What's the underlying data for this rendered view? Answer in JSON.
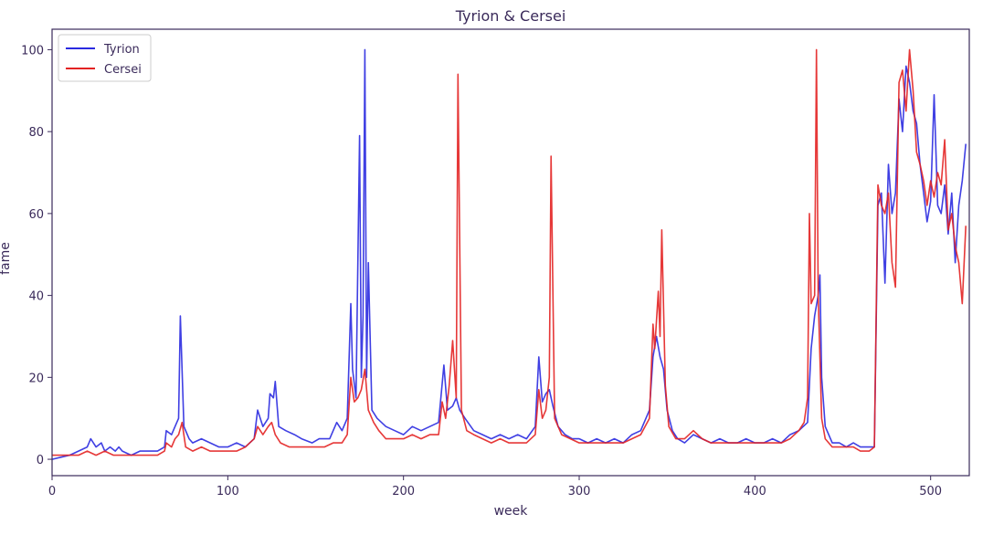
{
  "chart_data": {
    "type": "line",
    "title": "Tyrion & Cersei",
    "xlabel": "week",
    "ylabel": "fame",
    "xlim": [
      0,
      522
    ],
    "ylim": [
      -4,
      105
    ],
    "xticks": [
      0,
      100,
      200,
      300,
      400,
      500
    ],
    "yticks": [
      0,
      20,
      40,
      60,
      80,
      100
    ],
    "grid": false,
    "legend_position": "top-left",
    "colors": {
      "frame": "#3a2a5a",
      "text": "#3a2a5a"
    },
    "series": [
      {
        "name": "Tyrion",
        "color": "#2a2ae0",
        "points": [
          [
            0,
            0
          ],
          [
            5,
            0.5
          ],
          [
            10,
            1
          ],
          [
            15,
            2
          ],
          [
            20,
            3
          ],
          [
            22,
            5
          ],
          [
            25,
            3
          ],
          [
            28,
            4
          ],
          [
            30,
            2
          ],
          [
            33,
            3
          ],
          [
            36,
            2
          ],
          [
            38,
            3
          ],
          [
            40,
            2
          ],
          [
            45,
            1
          ],
          [
            50,
            2
          ],
          [
            55,
            2
          ],
          [
            60,
            2
          ],
          [
            64,
            3
          ],
          [
            65,
            7
          ],
          [
            68,
            6
          ],
          [
            70,
            8
          ],
          [
            72,
            10
          ],
          [
            73,
            35
          ],
          [
            75,
            8
          ],
          [
            78,
            5
          ],
          [
            80,
            4
          ],
          [
            85,
            5
          ],
          [
            90,
            4
          ],
          [
            95,
            3
          ],
          [
            100,
            3
          ],
          [
            105,
            4
          ],
          [
            110,
            3
          ],
          [
            115,
            5
          ],
          [
            117,
            12
          ],
          [
            120,
            8
          ],
          [
            123,
            10
          ],
          [
            124,
            16
          ],
          [
            126,
            15
          ],
          [
            127,
            19
          ],
          [
            129,
            8
          ],
          [
            133,
            7
          ],
          [
            138,
            6
          ],
          [
            142,
            5
          ],
          [
            148,
            4
          ],
          [
            152,
            5
          ],
          [
            158,
            5
          ],
          [
            160,
            7
          ],
          [
            162,
            9
          ],
          [
            165,
            7
          ],
          [
            168,
            10
          ],
          [
            170,
            38
          ],
          [
            171,
            22
          ],
          [
            173,
            15
          ],
          [
            175,
            79
          ],
          [
            176,
            20
          ],
          [
            177,
            35
          ],
          [
            178,
            100
          ],
          [
            179,
            20
          ],
          [
            180,
            48
          ],
          [
            182,
            12
          ],
          [
            185,
            10
          ],
          [
            190,
            8
          ],
          [
            195,
            7
          ],
          [
            200,
            6
          ],
          [
            205,
            8
          ],
          [
            210,
            7
          ],
          [
            215,
            8
          ],
          [
            220,
            9
          ],
          [
            223,
            23
          ],
          [
            225,
            12
          ],
          [
            228,
            13
          ],
          [
            230,
            15
          ],
          [
            232,
            12
          ],
          [
            235,
            10
          ],
          [
            240,
            7
          ],
          [
            245,
            6
          ],
          [
            250,
            5
          ],
          [
            255,
            6
          ],
          [
            260,
            5
          ],
          [
            265,
            6
          ],
          [
            270,
            5
          ],
          [
            275,
            8
          ],
          [
            277,
            25
          ],
          [
            279,
            14
          ],
          [
            281,
            16
          ],
          [
            283,
            17
          ],
          [
            285,
            13
          ],
          [
            288,
            8
          ],
          [
            292,
            6
          ],
          [
            296,
            5
          ],
          [
            300,
            5
          ],
          [
            305,
            4
          ],
          [
            310,
            5
          ],
          [
            315,
            4
          ],
          [
            320,
            5
          ],
          [
            325,
            4
          ],
          [
            330,
            6
          ],
          [
            335,
            7
          ],
          [
            340,
            12
          ],
          [
            342,
            25
          ],
          [
            344,
            30
          ],
          [
            346,
            25
          ],
          [
            348,
            22
          ],
          [
            350,
            12
          ],
          [
            353,
            7
          ],
          [
            356,
            5
          ],
          [
            360,
            4
          ],
          [
            365,
            6
          ],
          [
            370,
            5
          ],
          [
            375,
            4
          ],
          [
            380,
            5
          ],
          [
            385,
            4
          ],
          [
            390,
            4
          ],
          [
            395,
            5
          ],
          [
            400,
            4
          ],
          [
            405,
            4
          ],
          [
            410,
            5
          ],
          [
            415,
            4
          ],
          [
            420,
            6
          ],
          [
            425,
            7
          ],
          [
            430,
            9
          ],
          [
            432,
            27
          ],
          [
            434,
            35
          ],
          [
            436,
            40
          ],
          [
            437,
            45
          ],
          [
            438,
            20
          ],
          [
            440,
            8
          ],
          [
            444,
            4
          ],
          [
            448,
            4
          ],
          [
            452,
            3
          ],
          [
            456,
            4
          ],
          [
            460,
            3
          ],
          [
            465,
            3
          ],
          [
            468,
            3
          ],
          [
            470,
            62
          ],
          [
            472,
            65
          ],
          [
            474,
            43
          ],
          [
            476,
            72
          ],
          [
            478,
            60
          ],
          [
            480,
            65
          ],
          [
            482,
            88
          ],
          [
            484,
            80
          ],
          [
            486,
            96
          ],
          [
            488,
            92
          ],
          [
            490,
            85
          ],
          [
            492,
            82
          ],
          [
            494,
            72
          ],
          [
            496,
            65
          ],
          [
            498,
            58
          ],
          [
            500,
            63
          ],
          [
            502,
            89
          ],
          [
            504,
            62
          ],
          [
            506,
            60
          ],
          [
            508,
            67
          ],
          [
            510,
            55
          ],
          [
            512,
            65
          ],
          [
            514,
            48
          ],
          [
            516,
            62
          ],
          [
            518,
            68
          ],
          [
            520,
            77
          ]
        ]
      },
      {
        "name": "Cersei",
        "color": "#e32222",
        "points": [
          [
            0,
            1
          ],
          [
            5,
            1
          ],
          [
            10,
            1
          ],
          [
            15,
            1
          ],
          [
            20,
            2
          ],
          [
            25,
            1
          ],
          [
            30,
            2
          ],
          [
            35,
            1
          ],
          [
            40,
            1
          ],
          [
            45,
            1
          ],
          [
            50,
            1
          ],
          [
            55,
            1
          ],
          [
            60,
            1
          ],
          [
            64,
            2
          ],
          [
            65,
            4
          ],
          [
            68,
            3
          ],
          [
            70,
            5
          ],
          [
            72,
            6
          ],
          [
            74,
            9
          ],
          [
            76,
            3
          ],
          [
            80,
            2
          ],
          [
            85,
            3
          ],
          [
            90,
            2
          ],
          [
            95,
            2
          ],
          [
            100,
            2
          ],
          [
            105,
            2
          ],
          [
            110,
            3
          ],
          [
            115,
            5
          ],
          [
            117,
            8
          ],
          [
            120,
            6
          ],
          [
            123,
            8
          ],
          [
            125,
            9
          ],
          [
            127,
            6
          ],
          [
            130,
            4
          ],
          [
            135,
            3
          ],
          [
            140,
            3
          ],
          [
            145,
            3
          ],
          [
            150,
            3
          ],
          [
            155,
            3
          ],
          [
            160,
            4
          ],
          [
            165,
            4
          ],
          [
            168,
            6
          ],
          [
            170,
            20
          ],
          [
            172,
            14
          ],
          [
            174,
            15
          ],
          [
            176,
            17
          ],
          [
            178,
            22
          ],
          [
            180,
            12
          ],
          [
            183,
            9
          ],
          [
            186,
            7
          ],
          [
            190,
            5
          ],
          [
            195,
            5
          ],
          [
            200,
            5
          ],
          [
            205,
            6
          ],
          [
            210,
            5
          ],
          [
            215,
            6
          ],
          [
            220,
            6
          ],
          [
            222,
            14
          ],
          [
            224,
            10
          ],
          [
            226,
            18
          ],
          [
            228,
            29
          ],
          [
            230,
            15
          ],
          [
            231,
            94
          ],
          [
            233,
            12
          ],
          [
            236,
            7
          ],
          [
            240,
            6
          ],
          [
            245,
            5
          ],
          [
            250,
            4
          ],
          [
            255,
            5
          ],
          [
            260,
            4
          ],
          [
            265,
            4
          ],
          [
            270,
            4
          ],
          [
            275,
            6
          ],
          [
            277,
            17
          ],
          [
            279,
            10
          ],
          [
            281,
            12
          ],
          [
            283,
            20
          ],
          [
            284,
            74
          ],
          [
            286,
            10
          ],
          [
            290,
            6
          ],
          [
            295,
            5
          ],
          [
            300,
            4
          ],
          [
            305,
            4
          ],
          [
            310,
            4
          ],
          [
            315,
            4
          ],
          [
            320,
            4
          ],
          [
            325,
            4
          ],
          [
            330,
            5
          ],
          [
            335,
            6
          ],
          [
            340,
            10
          ],
          [
            342,
            33
          ],
          [
            343,
            27
          ],
          [
            345,
            41
          ],
          [
            346,
            30
          ],
          [
            347,
            56
          ],
          [
            349,
            18
          ],
          [
            351,
            8
          ],
          [
            355,
            5
          ],
          [
            360,
            5
          ],
          [
            365,
            7
          ],
          [
            370,
            5
          ],
          [
            375,
            4
          ],
          [
            380,
            4
          ],
          [
            385,
            4
          ],
          [
            390,
            4
          ],
          [
            395,
            4
          ],
          [
            400,
            4
          ],
          [
            405,
            4
          ],
          [
            410,
            4
          ],
          [
            415,
            4
          ],
          [
            420,
            5
          ],
          [
            425,
            7
          ],
          [
            428,
            9
          ],
          [
            430,
            15
          ],
          [
            431,
            60
          ],
          [
            432,
            38
          ],
          [
            434,
            40
          ],
          [
            435,
            100
          ],
          [
            436,
            40
          ],
          [
            438,
            10
          ],
          [
            440,
            5
          ],
          [
            444,
            3
          ],
          [
            448,
            3
          ],
          [
            452,
            3
          ],
          [
            456,
            3
          ],
          [
            460,
            2
          ],
          [
            465,
            2
          ],
          [
            468,
            3
          ],
          [
            470,
            67
          ],
          [
            472,
            62
          ],
          [
            474,
            60
          ],
          [
            476,
            65
          ],
          [
            478,
            48
          ],
          [
            480,
            42
          ],
          [
            482,
            92
          ],
          [
            484,
            95
          ],
          [
            486,
            85
          ],
          [
            488,
            100
          ],
          [
            490,
            90
          ],
          [
            492,
            75
          ],
          [
            494,
            72
          ],
          [
            496,
            68
          ],
          [
            498,
            62
          ],
          [
            500,
            68
          ],
          [
            502,
            64
          ],
          [
            504,
            70
          ],
          [
            506,
            67
          ],
          [
            508,
            78
          ],
          [
            510,
            56
          ],
          [
            512,
            60
          ],
          [
            514,
            52
          ],
          [
            516,
            48
          ],
          [
            518,
            38
          ],
          [
            520,
            57
          ]
        ]
      }
    ]
  }
}
